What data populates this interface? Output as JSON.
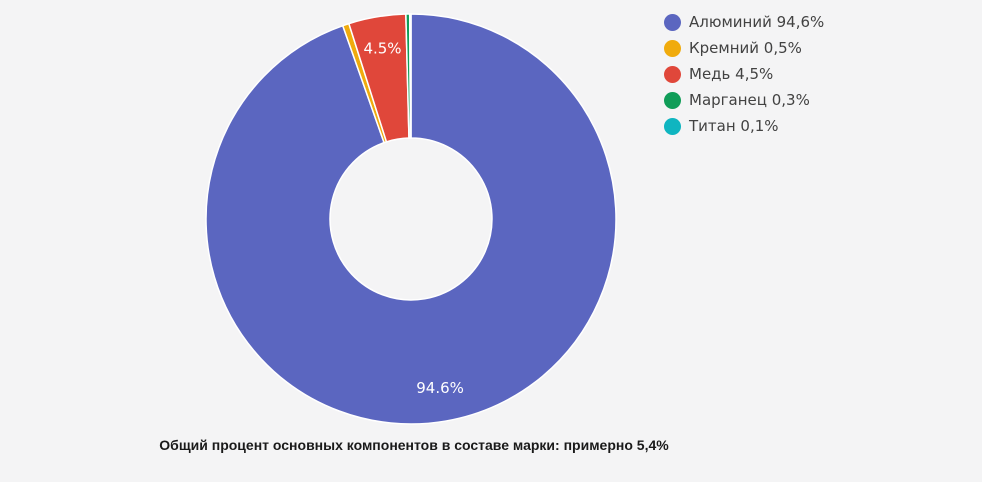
{
  "page": {
    "background": "#f4f4f5"
  },
  "chart_data": {
    "type": "pie",
    "subtype": "donut",
    "donut_hole_ratio": 0.395,
    "legend_position": "right",
    "categories": [
      "Алюминий",
      "Кремний",
      "Медь",
      "Марганец",
      "Титан"
    ],
    "values": [
      94.6,
      0.5,
      4.5,
      0.3,
      0.1
    ],
    "slices": [
      {
        "key": "aluminium",
        "label": "Алюминий",
        "value": 94.6,
        "legend_text": "Алюминий 94,6%",
        "slice_label": "94.6%",
        "color": "#5b66c0"
      },
      {
        "key": "silicon",
        "label": "Кремний",
        "value": 0.5,
        "legend_text": "Кремний 0,5%",
        "slice_label": null,
        "color": "#f0ab0d"
      },
      {
        "key": "copper",
        "label": "Медь",
        "value": 4.5,
        "legend_text": "Медь 4,5%",
        "slice_label": "4.5%",
        "color": "#e0473a"
      },
      {
        "key": "manganese",
        "label": "Марганец",
        "value": 0.3,
        "legend_text": "Марганец 0,3%",
        "slice_label": null,
        "color": "#109d58"
      },
      {
        "key": "titanium",
        "label": "Титан",
        "value": 0.1,
        "legend_text": "Титан 0,1%",
        "slice_label": null,
        "color": "#0fb5c0"
      }
    ],
    "slice_label_color": "#ffffff",
    "slice_border_color": "#ffffff",
    "legend_text_color": "#424242"
  },
  "caption": {
    "text": "Общий процент основных компонентов в составе марки: примерно 5,4%"
  }
}
